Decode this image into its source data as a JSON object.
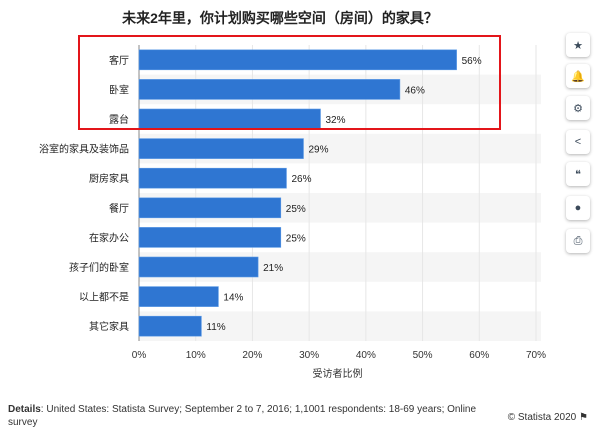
{
  "chart_data": {
    "type": "bar",
    "orientation": "horizontal",
    "title": "未来2年里，你计划购买哪些空间（房间）的家具？",
    "xlabel": "受访者比例",
    "ylabel": "",
    "categories": [
      "客厅",
      "卧室",
      "露台",
      "浴室的家具及装饰品",
      "厨房家具",
      "餐厅",
      "在家办公",
      "孩子们的卧室",
      "以上都不是",
      "其它家具"
    ],
    "values": [
      56,
      46,
      32,
      29,
      26,
      25,
      25,
      21,
      14,
      11
    ],
    "value_labels": [
      "56%",
      "46%",
      "32%",
      "29%",
      "26%",
      "25%",
      "25%",
      "21%",
      "14%",
      "11%"
    ],
    "xlim": [
      0,
      70
    ],
    "xticks": [
      "0%",
      "10%",
      "20%",
      "30%",
      "40%",
      "50%",
      "60%",
      "70%"
    ],
    "grid": true,
    "bar_color": "#2f76d2",
    "highlight_color": "#e3151a",
    "highlighted_categories": [
      "客厅",
      "卧室",
      "露台"
    ]
  },
  "footer": {
    "details_label": "Details",
    "details_text": ": United States: Statista Survey; September 2 to 7, 2016; 1,1001 respondents: 18-69 years; Online survey",
    "copyright": "© Statista 2020"
  },
  "sidebar": {
    "icons": [
      "star-icon",
      "bell-icon",
      "gear-icon",
      "share-icon",
      "quote-icon",
      "comment-icon",
      "print-icon"
    ]
  }
}
